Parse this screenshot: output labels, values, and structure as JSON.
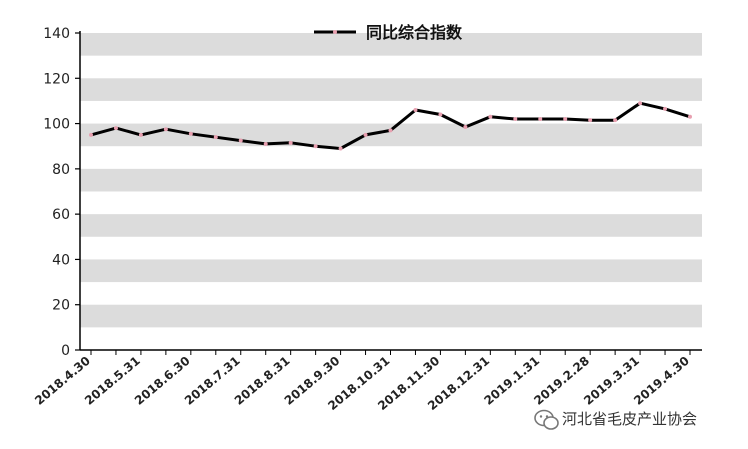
{
  "chart_data": {
    "type": "line",
    "title": "",
    "xlabel": "",
    "ylabel": "",
    "ylim": [
      0,
      140
    ],
    "yticks": [
      0,
      20,
      40,
      60,
      80,
      100,
      120,
      140
    ],
    "x": [
      "2018.4.30",
      "2018.5.15",
      "2018.5.31",
      "2018.6.15",
      "2018.6.30",
      "2018.7.15",
      "2018.7.31",
      "2018.8.15",
      "2018.8.31",
      "2018.9.15",
      "2018.9.30",
      "2018.10.15",
      "2018.10.31",
      "2018.11.15",
      "2018.11.30",
      "2018.12.15",
      "2018.12.31",
      "2019.1.15",
      "2019.1.31",
      "2019.2.15",
      "2019.2.28",
      "2019.3.15",
      "2019.3.31",
      "2019.4.15",
      "2019.4.30"
    ],
    "xtick_labels": [
      "2018.4.30",
      "2018.5.31",
      "2018.6.30",
      "2018.7.31",
      "2018.8.31",
      "2018.9.30",
      "2018.10.31",
      "2018.11.30",
      "2018.12.31",
      "2019.1.31",
      "2019.2.28",
      "2019.3.31",
      "2019.4.30"
    ],
    "series": [
      {
        "name": "同比综合指数",
        "color": "#000000",
        "marker_color": "#e8a0b0",
        "values": [
          95,
          98,
          95,
          97.5,
          95.5,
          94,
          92.5,
          91,
          91.5,
          90,
          89,
          95,
          97,
          106,
          104,
          98.5,
          103,
          102,
          102,
          102,
          101.5,
          101.5,
          109,
          106.5,
          103
        ]
      }
    ],
    "legend_position": "top",
    "band_colors": [
      "#dcdcdc",
      "#ffffff"
    ]
  },
  "watermark": {
    "icon": "wechat-icon",
    "text": "河北省毛皮产业协会"
  }
}
